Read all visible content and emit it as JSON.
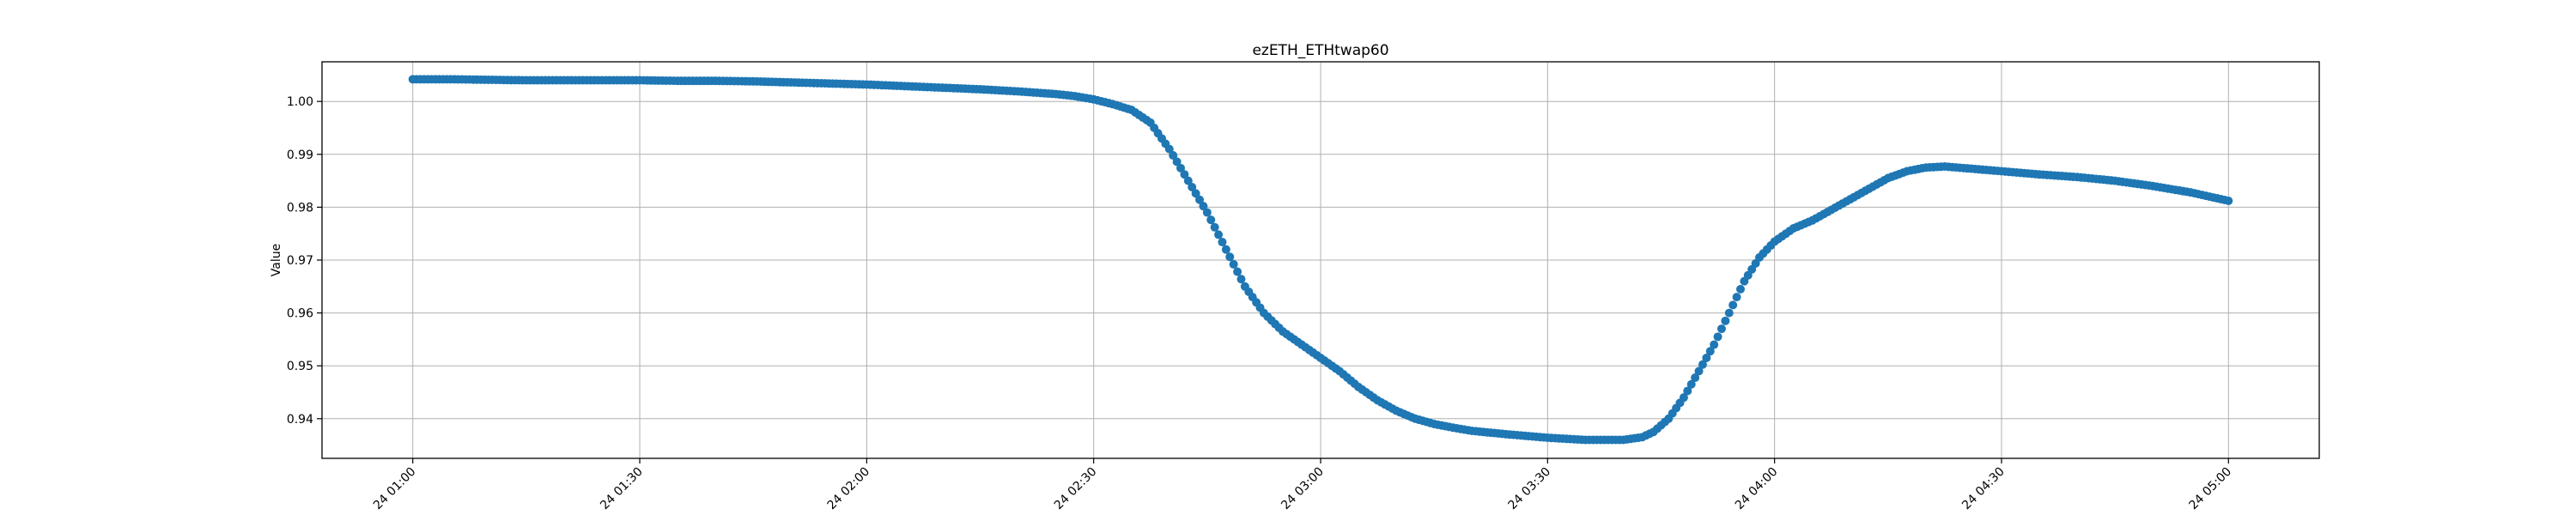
{
  "chart_data": {
    "type": "scatter",
    "title": "ezETH_ETHtwap60",
    "xlabel": "",
    "ylabel": "Value",
    "grid": true,
    "legend": "none",
    "color": "#1f77b4",
    "xlim": [
      -24,
      504
    ],
    "ylim": [
      0.9325,
      1.0075
    ],
    "x_ticks": [
      {
        "t": 0,
        "label": "24 01:00"
      },
      {
        "t": 60,
        "label": "24 01:30"
      },
      {
        "t": 120,
        "label": "24 02:00"
      },
      {
        "t": 180,
        "label": "24 02:30"
      },
      {
        "t": 240,
        "label": "24 03:00"
      },
      {
        "t": 300,
        "label": "24 03:30"
      },
      {
        "t": 360,
        "label": "24 04:00"
      },
      {
        "t": 420,
        "label": "24 04:30"
      },
      {
        "t": 480,
        "label": "24 05:00"
      }
    ],
    "y_ticks": [
      {
        "v": 0.94,
        "label": "0.94"
      },
      {
        "v": 0.95,
        "label": "0.95"
      },
      {
        "v": 0.96,
        "label": "0.96"
      },
      {
        "v": 0.97,
        "label": "0.97"
      },
      {
        "v": 0.98,
        "label": "0.98"
      },
      {
        "v": 0.99,
        "label": "0.99"
      },
      {
        "v": 1.0,
        "label": "1.00"
      }
    ],
    "points": [
      [
        0,
        1.0042
      ],
      [
        10,
        1.0042
      ],
      [
        20,
        1.0041
      ],
      [
        30,
        1.004
      ],
      [
        40,
        1.004
      ],
      [
        50,
        1.004
      ],
      [
        60,
        1.004
      ],
      [
        70,
        1.0039
      ],
      [
        80,
        1.0039
      ],
      [
        90,
        1.0038
      ],
      [
        100,
        1.0036
      ],
      [
        110,
        1.0034
      ],
      [
        120,
        1.0032
      ],
      [
        130,
        1.0029
      ],
      [
        140,
        1.0026
      ],
      [
        150,
        1.0023
      ],
      [
        160,
        1.0019
      ],
      [
        170,
        1.0014
      ],
      [
        175,
        1.001
      ],
      [
        180,
        1.0004
      ],
      [
        185,
        0.9995
      ],
      [
        190,
        0.9984
      ],
      [
        195,
        0.996
      ],
      [
        200,
        0.991
      ],
      [
        205,
        0.985
      ],
      [
        210,
        0.979
      ],
      [
        215,
        0.972
      ],
      [
        220,
        0.965
      ],
      [
        225,
        0.96
      ],
      [
        230,
        0.9565
      ],
      [
        235,
        0.954
      ],
      [
        240,
        0.9515
      ],
      [
        245,
        0.949
      ],
      [
        250,
        0.946
      ],
      [
        255,
        0.9435
      ],
      [
        260,
        0.9415
      ],
      [
        265,
        0.94
      ],
      [
        270,
        0.939
      ],
      [
        275,
        0.9383
      ],
      [
        280,
        0.9377
      ],
      [
        290,
        0.937
      ],
      [
        300,
        0.9364
      ],
      [
        310,
        0.936
      ],
      [
        320,
        0.936
      ],
      [
        325,
        0.9365
      ],
      [
        328,
        0.9375
      ],
      [
        332,
        0.94
      ],
      [
        336,
        0.944
      ],
      [
        340,
        0.949
      ],
      [
        344,
        0.954
      ],
      [
        348,
        0.96
      ],
      [
        352,
        0.966
      ],
      [
        356,
        0.9705
      ],
      [
        360,
        0.9735
      ],
      [
        365,
        0.976
      ],
      [
        370,
        0.9775
      ],
      [
        375,
        0.9795
      ],
      [
        380,
        0.9815
      ],
      [
        385,
        0.9835
      ],
      [
        390,
        0.9855
      ],
      [
        395,
        0.9868
      ],
      [
        400,
        0.9875
      ],
      [
        405,
        0.9877
      ],
      [
        410,
        0.9874
      ],
      [
        420,
        0.9868
      ],
      [
        430,
        0.9862
      ],
      [
        440,
        0.9857
      ],
      [
        450,
        0.985
      ],
      [
        460,
        0.984
      ],
      [
        470,
        0.9828
      ],
      [
        480,
        0.9812
      ]
    ]
  }
}
